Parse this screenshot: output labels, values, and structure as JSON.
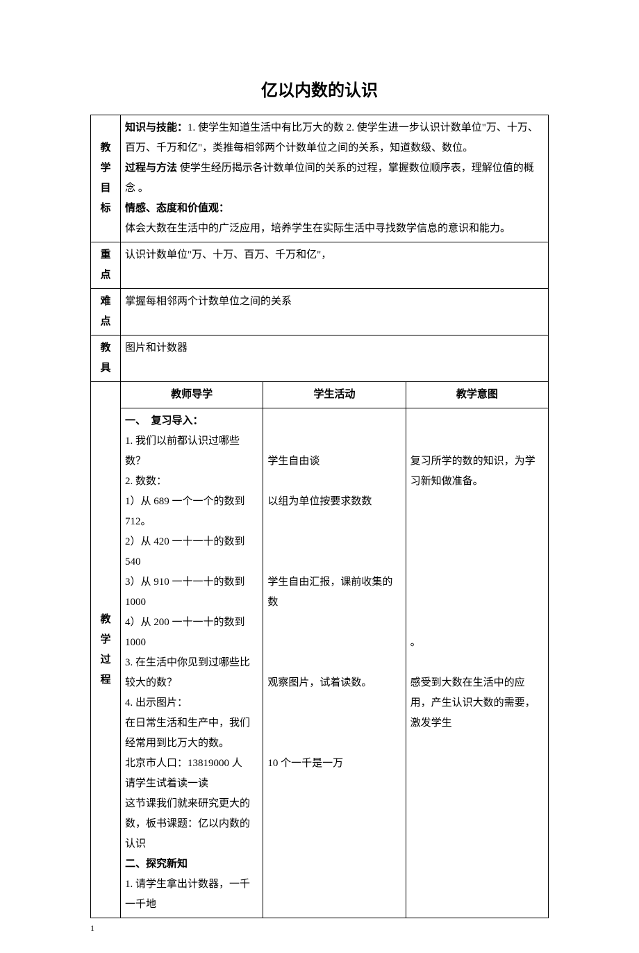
{
  "title": "亿以内数的认识",
  "rows": {
    "goal": {
      "label": "教学目标",
      "content_parts": [
        {
          "bold": true,
          "text": "知识与技能："
        },
        {
          "bold": false,
          "text": "1. 使学生知道生活中有比万大的数 2. 使学生进一步认识计数单位\"万、十万、百万、千万和亿\"，类推每相邻两个计数单位之间的关系，知道数级、数位。"
        },
        {
          "break": true
        },
        {
          "bold": true,
          "text": "过程与方法 "
        },
        {
          "bold": false,
          "text": "使学生经历揭示各计数单位间的关系的过程，掌握数位顺序表，理解位值的概念 。"
        },
        {
          "break": true
        },
        {
          "bold": true,
          "text": "情感、态度和价值观："
        },
        {
          "break": true
        },
        {
          "bold": false,
          "text": "体会大数在生活中的广泛应用，培养学生在实际生活中寻找数学信息的意识和能力。"
        }
      ]
    },
    "keypoint": {
      "label": "重点",
      "content": "认识计数单位\"万、十万、百万、千万和亿\"，"
    },
    "difficulty": {
      "label": "难点",
      "content": "掌握每相邻两个计数单位之间的关系"
    },
    "tools": {
      "label": "教具",
      "content": "图片和计数器"
    },
    "process": {
      "label": "教学过程",
      "headers": {
        "teacher": "教师导学",
        "student": "学生活动",
        "intent": "教学意图"
      },
      "teacher_lines": [
        {
          "bold": true,
          "text": "一、　复习导入："
        },
        {
          "bold": false,
          "text": "1. 我们以前都认识过哪些数？"
        },
        {
          "bold": false,
          "text": "2. 数数："
        },
        {
          "bold": false,
          "text": "1）从 689 一个一个的数到 712。"
        },
        {
          "bold": false,
          "text": "2）从 420 一十一十的数到 540"
        },
        {
          "bold": false,
          "text": "3）从 910 一十一十的数到 1000"
        },
        {
          "bold": false,
          "text": "4）从 200 一十一十的数到 1000"
        },
        {
          "bold": false,
          "text": "3. 在生活中你见到过哪些比较大的数？"
        },
        {
          "bold": false,
          "text": "4. 出示图片："
        },
        {
          "bold": false,
          "text": "在日常生活和生产中，我们经常用到比万大的数。"
        },
        {
          "bold": false,
          "text": "北京市人口：13819000 人"
        },
        {
          "bold": false,
          "text": "请学生试着读一读"
        },
        {
          "bold": false,
          "text": "这节课我们就来研究更大的数，板书课题：亿以内数的认识"
        },
        {
          "bold": true,
          "text": "二、探究新知"
        },
        {
          "bold": false,
          "text": "1. 请学生拿出计数器，一千一千地"
        }
      ],
      "student_lines": [
        "",
        "",
        "学生自由谈",
        "",
        "以组为单位按要求数数",
        "",
        "",
        "",
        "学生自由汇报，课前收集的数",
        "",
        "",
        "",
        "观察图片，试着读数。",
        "",
        "",
        "",
        "10 个一千是一万"
      ],
      "intent_lines": [
        "",
        "",
        "复习所学的数的知识，为学习新知做准备。",
        "",
        "",
        "",
        "",
        "",
        "",
        "",
        "。",
        "",
        "感受到大数在生活中的应用，产生认识大数的需要，激发学生"
      ]
    }
  },
  "page_number": "1"
}
